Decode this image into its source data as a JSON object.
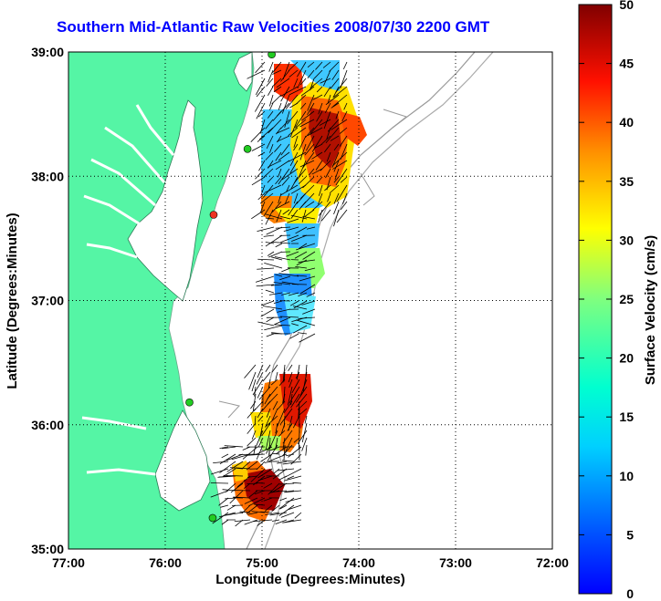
{
  "title": "Southern Mid-Atlantic Raw Velocities 2008/07/30 2200 GMT",
  "map": {
    "xlabel": "Longitude (Degrees:Minutes)",
    "ylabel": "Latitude (Degrees:Minutes)",
    "x_ticks": [
      "77:00",
      "76:00",
      "75:00",
      "74:00",
      "73:00",
      "72:00"
    ],
    "y_ticks": [
      "39:00",
      "38:00",
      "37:00",
      "36:00",
      "35:00"
    ],
    "lon_range": [
      -77,
      -72
    ],
    "lat_range": [
      35,
      39
    ],
    "grid": "dotted",
    "land_color": "#55f5a5",
    "stations": [
      {
        "lon": -74.9,
        "lat": 38.98,
        "color": "#22cc22"
      },
      {
        "lon": -75.15,
        "lat": 38.22,
        "color": "#22cc22"
      },
      {
        "lon": -75.5,
        "lat": 37.69,
        "color": "#ee3322"
      },
      {
        "lon": -75.75,
        "lat": 36.18,
        "color": "#22cc22"
      },
      {
        "lon": -75.51,
        "lat": 35.25,
        "color": "#22cc22"
      }
    ]
  },
  "colorbar": {
    "label": "Surface Velocity (cm/s)",
    "ticks": [
      "0",
      "5",
      "10",
      "15",
      "20",
      "25",
      "30",
      "35",
      "40",
      "45",
      "50"
    ],
    "range": [
      0,
      50
    ],
    "colormap": "jet"
  }
}
